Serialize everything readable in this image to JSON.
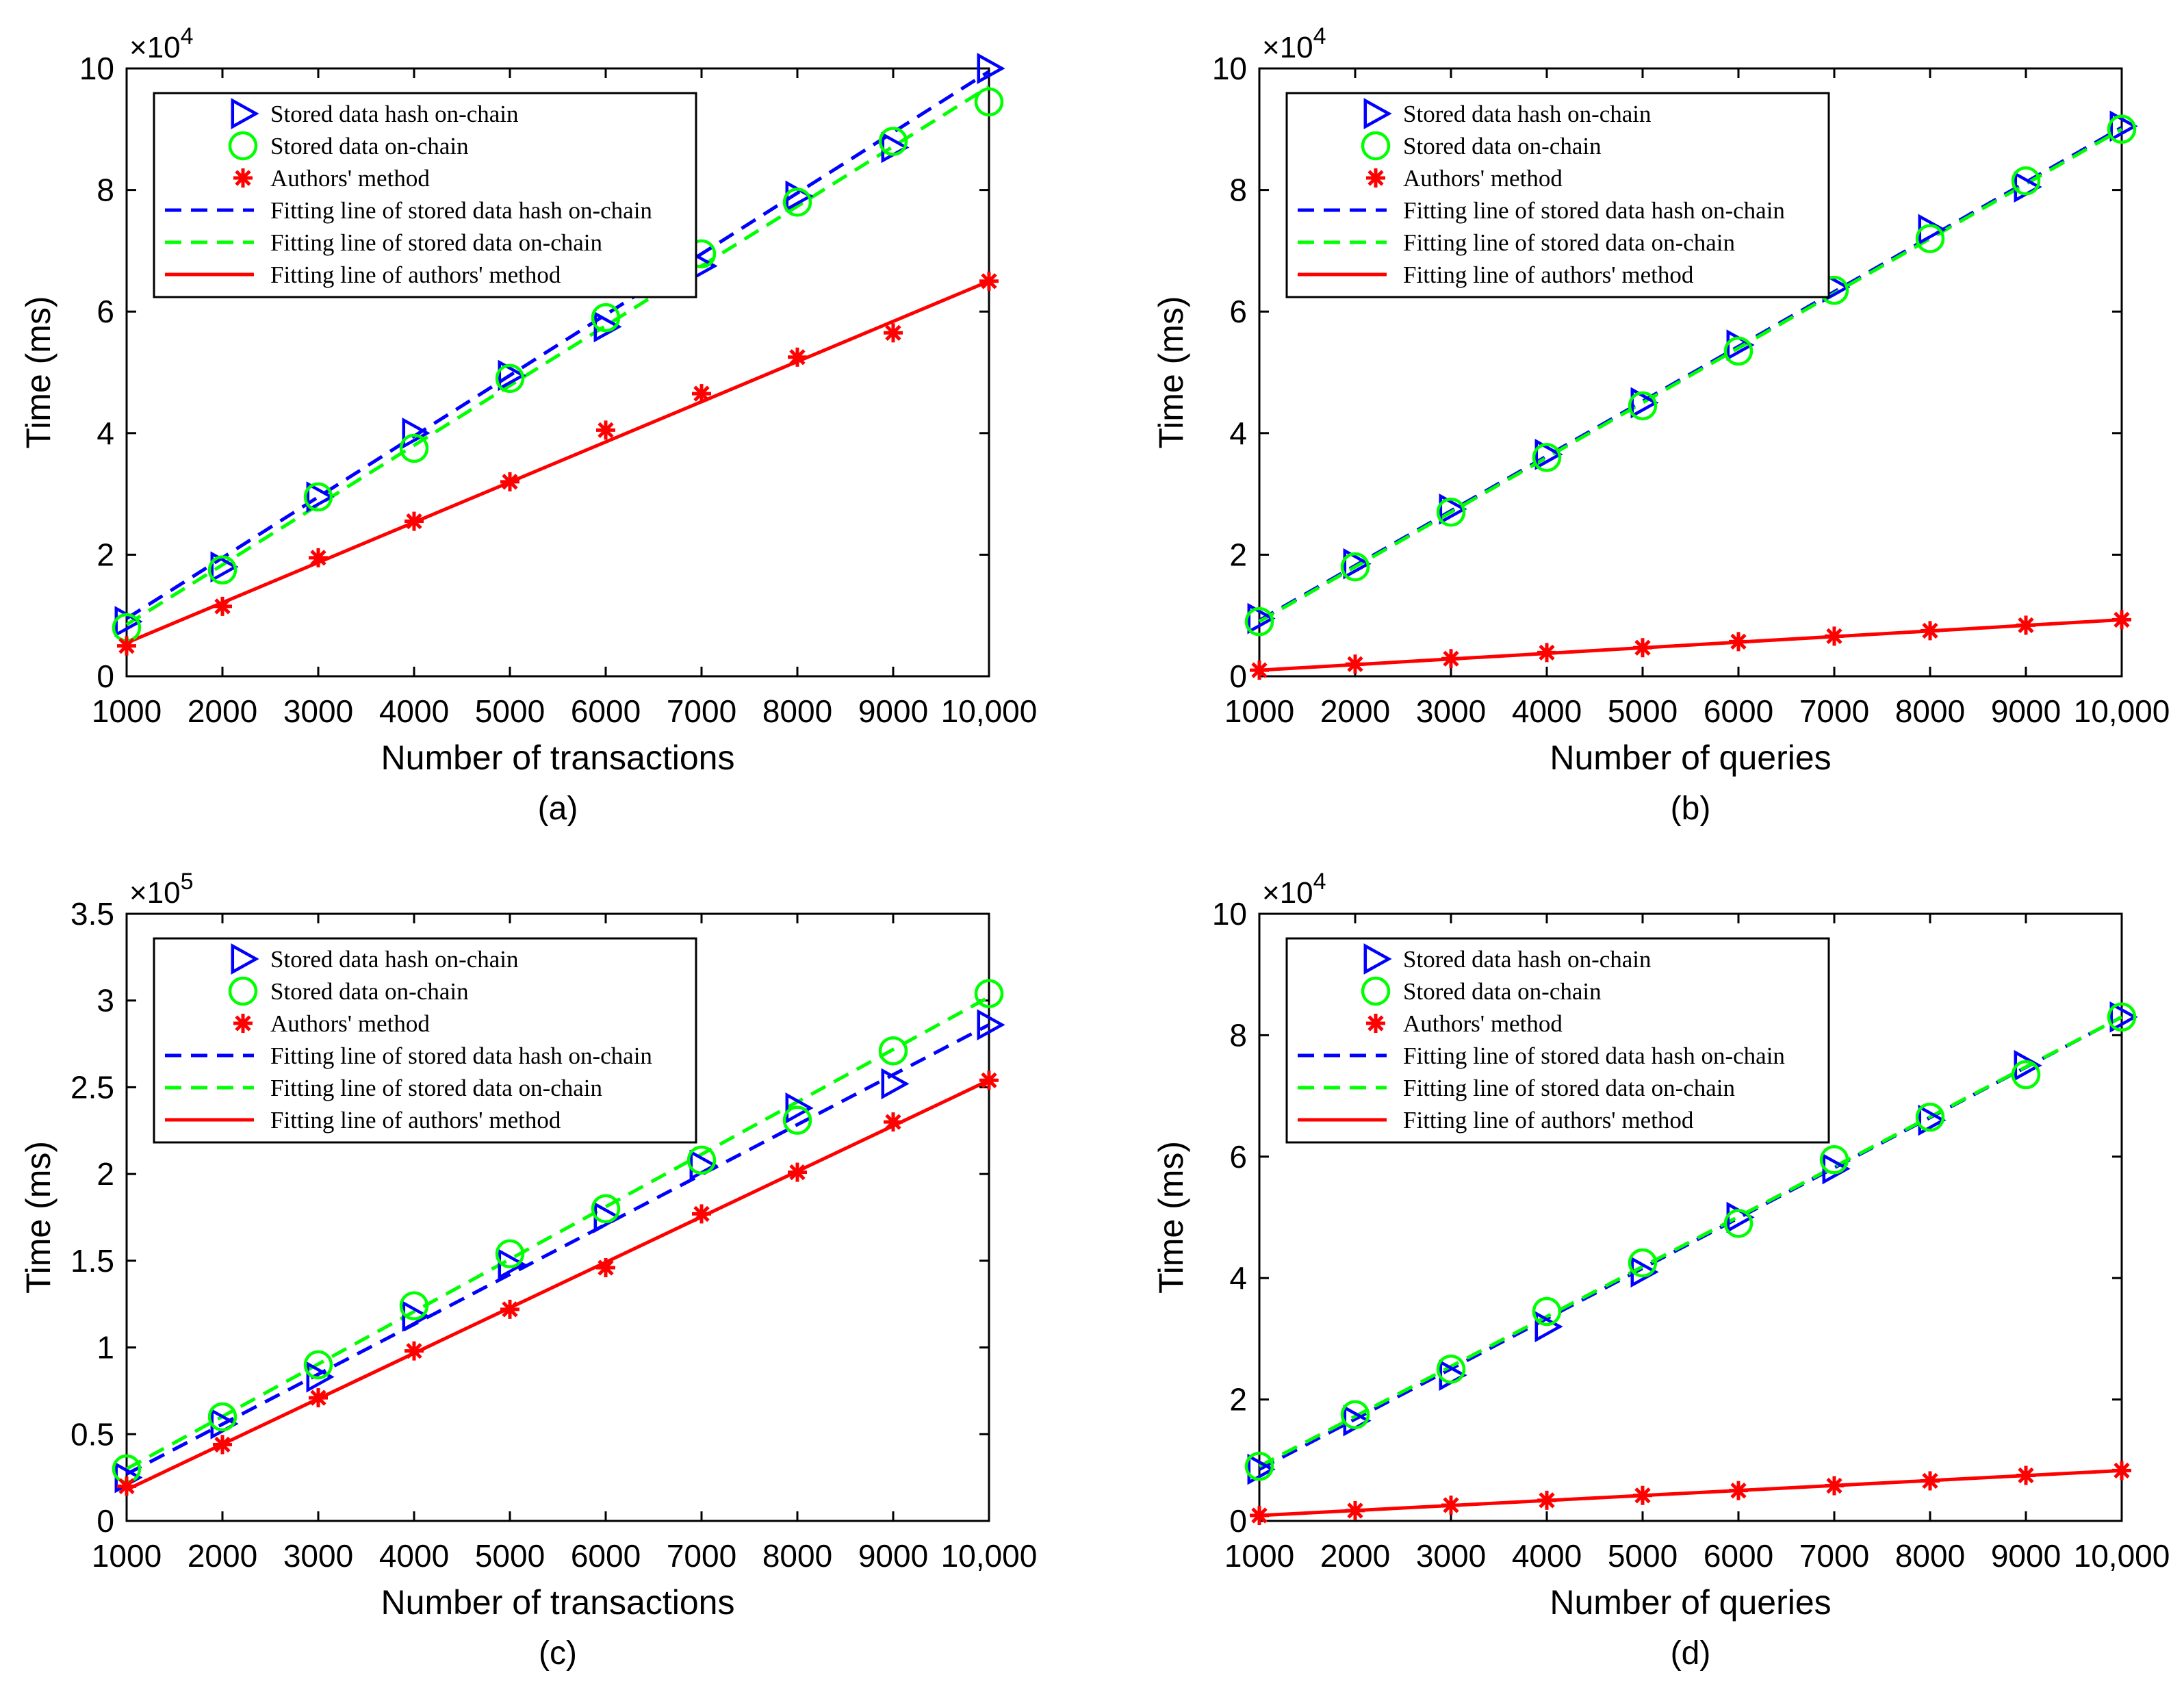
{
  "chart_data": [
    {
      "type": "line",
      "panel_label": "(a)",
      "xlabel": "Number of transactions",
      "ylabel": "Time (ms)",
      "exponent_label": "×10",
      "exponent": "4",
      "categories": [
        "1000",
        "2000",
        "3000",
        "4000",
        "5000",
        "6000",
        "7000",
        "8000",
        "9000",
        "10,000"
      ],
      "x": [
        1000,
        2000,
        3000,
        4000,
        5000,
        6000,
        7000,
        8000,
        9000,
        10000
      ],
      "xlim": [
        1000,
        10000
      ],
      "ylim": [
        0,
        100000
      ],
      "yticks": [
        0,
        20000,
        40000,
        60000,
        80000,
        100000
      ],
      "ytick_labels": [
        "0",
        "2",
        "4",
        "6",
        "8",
        "10"
      ],
      "legend_position": "top-left",
      "series": [
        {
          "name": "Stored data hash on-chain",
          "marker": "triangle-right",
          "color": "#0000ff",
          "values": [
            9000,
            18000,
            29500,
            40000,
            49500,
            57500,
            67500,
            79000,
            87000,
            100000
          ]
        },
        {
          "name": "Stored data on-chain",
          "marker": "circle",
          "color": "#00ff00",
          "values": [
            8000,
            17500,
            29500,
            37500,
            49000,
            59000,
            69500,
            78000,
            88000,
            94500
          ]
        },
        {
          "name": "Authors' method",
          "marker": "asterisk",
          "color": "#ff0000",
          "values": [
            5000,
            11500,
            19500,
            25500,
            32000,
            40500,
            46500,
            52500,
            56500,
            65000
          ]
        }
      ],
      "fits": [
        {
          "name": "Fitting line of stored data hash on-chain",
          "style": "dashed",
          "color": "#0000ff",
          "y_start": 9500,
          "y_end": 99500
        },
        {
          "name": "Fitting line of stored data on-chain",
          "style": "dashed",
          "color": "#00ff00",
          "y_start": 8500,
          "y_end": 97000
        },
        {
          "name": "Fitting line of authors' method",
          "style": "solid",
          "color": "#ff0000",
          "y_start": 5500,
          "y_end": 65000
        }
      ]
    },
    {
      "type": "line",
      "panel_label": "(b)",
      "xlabel": "Number of queries",
      "ylabel": "Time (ms)",
      "exponent_label": "×10",
      "exponent": "4",
      "categories": [
        "1000",
        "2000",
        "3000",
        "4000",
        "5000",
        "6000",
        "7000",
        "8000",
        "9000",
        "10,000"
      ],
      "x": [
        1000,
        2000,
        3000,
        4000,
        5000,
        6000,
        7000,
        8000,
        9000,
        10000
      ],
      "xlim": [
        1000,
        10000
      ],
      "ylim": [
        0,
        100000
      ],
      "yticks": [
        0,
        20000,
        40000,
        60000,
        80000,
        100000
      ],
      "ytick_labels": [
        "0",
        "2",
        "4",
        "6",
        "8",
        "10"
      ],
      "legend_position": "top-left",
      "series": [
        {
          "name": "Stored data hash on-chain",
          "marker": "triangle-right",
          "color": "#0000ff",
          "values": [
            9500,
            18500,
            27500,
            36500,
            45000,
            54500,
            64000,
            73500,
            80500,
            90500
          ]
        },
        {
          "name": "Stored data on-chain",
          "marker": "circle",
          "color": "#00ff00",
          "values": [
            9000,
            18000,
            27000,
            36000,
            44500,
            53500,
            63500,
            72000,
            81500,
            90000
          ]
        },
        {
          "name": "Authors' method",
          "marker": "asterisk",
          "color": "#ff0000",
          "values": [
            1000,
            2000,
            2900,
            3900,
            4700,
            5700,
            6600,
            7500,
            8400,
            9300
          ]
        }
      ],
      "fits": [
        {
          "name": "Fitting line of stored data hash on-chain",
          "style": "dashed",
          "color": "#0000ff",
          "y_start": 9200,
          "y_end": 90300
        },
        {
          "name": "Fitting line of stored data on-chain",
          "style": "dashed",
          "color": "#00ff00",
          "y_start": 9000,
          "y_end": 90000
        },
        {
          "name": "Fitting line of authors' method",
          "style": "solid",
          "color": "#ff0000",
          "y_start": 1000,
          "y_end": 9300
        }
      ]
    },
    {
      "type": "line",
      "panel_label": "(c)",
      "xlabel": "Number of transactions",
      "ylabel": "Time (ms)",
      "exponent_label": "×10",
      "exponent": "5",
      "categories": [
        "1000",
        "2000",
        "3000",
        "4000",
        "5000",
        "6000",
        "7000",
        "8000",
        "9000",
        "10,000"
      ],
      "x": [
        1000,
        2000,
        3000,
        4000,
        5000,
        6000,
        7000,
        8000,
        9000,
        10000
      ],
      "xlim": [
        1000,
        10000
      ],
      "ylim": [
        0,
        350000
      ],
      "yticks": [
        0,
        50000,
        100000,
        150000,
        200000,
        250000,
        300000,
        350000
      ],
      "ytick_labels": [
        "0",
        "0.5",
        "1",
        "1.5",
        "2",
        "2.5",
        "3",
        "3.5"
      ],
      "legend_position": "top-left",
      "series": [
        {
          "name": "Stored data hash on-chain",
          "marker": "triangle-right",
          "color": "#0000ff",
          "values": [
            25000,
            56000,
            83000,
            118000,
            148000,
            175000,
            205000,
            238000,
            252000,
            286000
          ]
        },
        {
          "name": "Stored data on-chain",
          "marker": "circle",
          "color": "#00ff00",
          "values": [
            30000,
            60000,
            90000,
            124000,
            154000,
            180000,
            208000,
            231000,
            271000,
            304000
          ]
        },
        {
          "name": "Authors' method",
          "marker": "asterisk",
          "color": "#ff0000",
          "values": [
            20000,
            44000,
            71000,
            98000,
            122000,
            146000,
            177000,
            201000,
            230000,
            254000
          ]
        }
      ],
      "fits": [
        {
          "name": "Fitting line of stored data hash on-chain",
          "style": "dashed",
          "color": "#0000ff",
          "y_start": 27000,
          "y_end": 286000
        },
        {
          "name": "Fitting line of stored data on-chain",
          "style": "dashed",
          "color": "#00ff00",
          "y_start": 30000,
          "y_end": 302000
        },
        {
          "name": "Fitting line of authors' method",
          "style": "solid",
          "color": "#ff0000",
          "y_start": 18000,
          "y_end": 254000
        }
      ]
    },
    {
      "type": "line",
      "panel_label": "(d)",
      "xlabel": "Number of queries",
      "ylabel": "Time (ms)",
      "exponent_label": "×10",
      "exponent": "4",
      "categories": [
        "1000",
        "2000",
        "3000",
        "4000",
        "5000",
        "6000",
        "7000",
        "8000",
        "9000",
        "10,000"
      ],
      "x": [
        1000,
        2000,
        3000,
        4000,
        5000,
        6000,
        7000,
        8000,
        9000,
        10000
      ],
      "xlim": [
        1000,
        10000
      ],
      "ylim": [
        0,
        100000
      ],
      "yticks": [
        0,
        20000,
        40000,
        60000,
        80000,
        100000
      ],
      "ytick_labels": [
        "0",
        "2",
        "4",
        "6",
        "8",
        "10"
      ],
      "legend_position": "top-left",
      "series": [
        {
          "name": "Stored data hash on-chain",
          "marker": "triangle-right",
          "color": "#0000ff",
          "values": [
            8500,
            16500,
            24000,
            32000,
            41000,
            50000,
            58000,
            66000,
            75000,
            83000
          ]
        },
        {
          "name": "Stored data on-chain",
          "marker": "circle",
          "color": "#00ff00",
          "values": [
            9000,
            17500,
            25000,
            34500,
            42500,
            49000,
            59500,
            66500,
            73500,
            83000
          ]
        },
        {
          "name": "Authors' method",
          "marker": "asterisk",
          "color": "#ff0000",
          "values": [
            900,
            1700,
            2600,
            3400,
            4200,
            5000,
            5800,
            6600,
            7500,
            8300
          ]
        }
      ],
      "fits": [
        {
          "name": "Fitting line of stored data hash on-chain",
          "style": "dashed",
          "color": "#0000ff",
          "y_start": 8500,
          "y_end": 83000
        },
        {
          "name": "Fitting line of stored data on-chain",
          "style": "dashed",
          "color": "#00ff00",
          "y_start": 9000,
          "y_end": 83000
        },
        {
          "name": "Fitting line of authors' method",
          "style": "solid",
          "color": "#ff0000",
          "y_start": 900,
          "y_end": 8300
        }
      ]
    }
  ]
}
